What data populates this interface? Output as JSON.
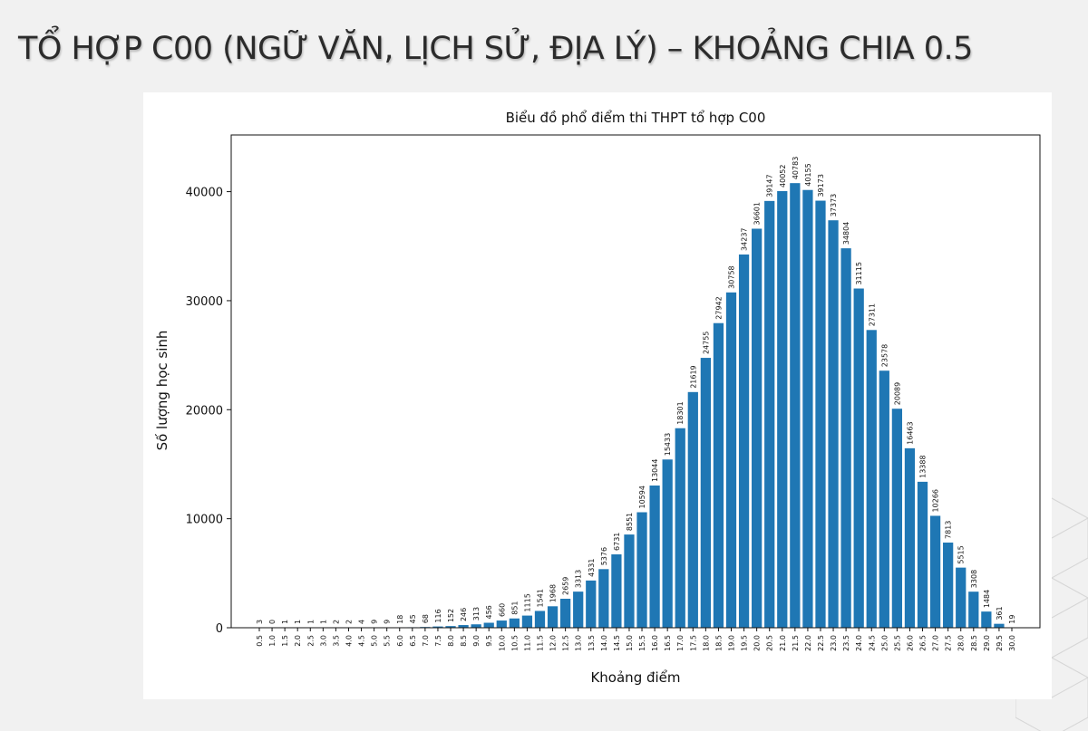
{
  "slide": {
    "title": "TỔ HỢP C00 (NGỮ VĂN, LỊCH SỬ, ĐỊA LÝ) – KHOẢNG CHIA 0.5"
  },
  "chart_data": {
    "type": "bar",
    "title": "Biểu đồ phổ điểm thi THPT tổ hợp C00",
    "xlabel": "Khoảng điểm",
    "ylabel": "Số lượng học sinh",
    "bar_color": "#1f77b4",
    "ylim": [
      0,
      45200
    ],
    "yticks": [
      0,
      10000,
      20000,
      30000,
      40000
    ],
    "categories": [
      "0.5",
      "1.0",
      "1.5",
      "2.0",
      "2.5",
      "3.0",
      "3.5",
      "4.0",
      "4.5",
      "5.0",
      "5.5",
      "6.0",
      "6.5",
      "7.0",
      "7.5",
      "8.0",
      "8.5",
      "9.0",
      "9.5",
      "10.0",
      "10.5",
      "11.0",
      "11.5",
      "12.0",
      "12.5",
      "13.0",
      "13.5",
      "14.0",
      "14.5",
      "15.0",
      "15.5",
      "16.0",
      "16.5",
      "17.0",
      "17.5",
      "18.0",
      "18.5",
      "19.0",
      "19.5",
      "20.0",
      "20.5",
      "21.0",
      "21.5",
      "22.0",
      "22.5",
      "23.0",
      "23.5",
      "24.0",
      "24.5",
      "25.0",
      "25.5",
      "26.0",
      "26.5",
      "27.0",
      "27.5",
      "28.0",
      "28.5",
      "29.0",
      "29.5",
      "30.0"
    ],
    "values": [
      3,
      0,
      1,
      1,
      1,
      1,
      2,
      2,
      4,
      9,
      9,
      18,
      45,
      68,
      116,
      152,
      246,
      313,
      456,
      660,
      851,
      1115,
      1541,
      1968,
      2659,
      3313,
      4331,
      5376,
      6731,
      8551,
      10594,
      13044,
      15433,
      18301,
      21619,
      24755,
      27942,
      30758,
      34237,
      36601,
      39147,
      40052,
      40783,
      40155,
      39173,
      37373,
      34804,
      31115,
      27311,
      23578,
      20089,
      16463,
      13388,
      10266,
      7813,
      5515,
      3308,
      1484,
      361,
      19
    ],
    "grid": false,
    "legend": "none"
  }
}
